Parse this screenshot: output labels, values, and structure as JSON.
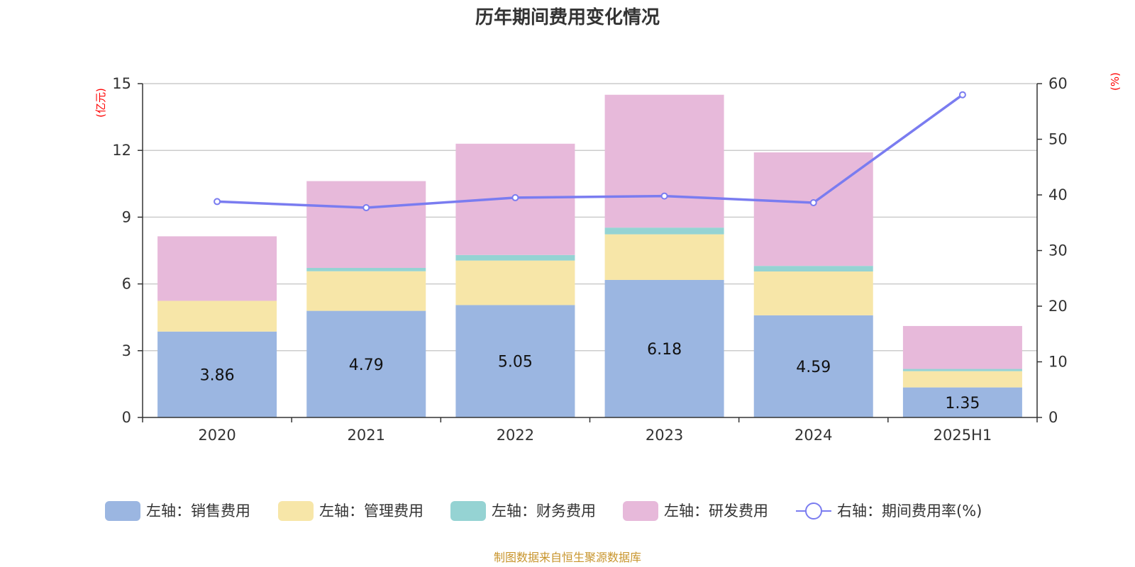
{
  "chart_data": {
    "type": "bar",
    "title": "历年期间费用变化情况",
    "categories": [
      "2020",
      "2021",
      "2022",
      "2023",
      "2024",
      "2025H1"
    ],
    "left_axis": {
      "unit": "(亿元)",
      "ylim": [
        0,
        15
      ],
      "ticks": [
        0,
        3,
        6,
        9,
        12,
        15
      ]
    },
    "right_axis": {
      "unit": "(%)",
      "ylim": [
        0,
        60
      ],
      "ticks": [
        0,
        10,
        20,
        30,
        40,
        50,
        60
      ]
    },
    "series": [
      {
        "name": "左轴：销售费用",
        "kind": "bar",
        "axis": "left",
        "color": "#9bb6e1",
        "values": [
          3.86,
          4.79,
          5.05,
          6.18,
          4.59,
          1.35
        ],
        "labels": [
          "3.86",
          "4.79",
          "5.05",
          "6.18",
          "4.59",
          "1.35"
        ]
      },
      {
        "name": "左轴：管理费用",
        "kind": "bar",
        "axis": "left",
        "color": "#f7e6a8",
        "values": [
          1.38,
          1.78,
          2.0,
          2.05,
          1.97,
          0.73
        ]
      },
      {
        "name": "左轴：财务费用",
        "kind": "bar",
        "axis": "left",
        "color": "#95d3d3",
        "values": [
          0.0,
          0.15,
          0.25,
          0.3,
          0.25,
          0.1
        ]
      },
      {
        "name": "左轴：研发费用",
        "kind": "bar",
        "axis": "left",
        "color": "#e7b9da",
        "values": [
          2.9,
          3.9,
          5.0,
          5.97,
          5.1,
          1.93
        ]
      },
      {
        "name": "右轴：期间费用率(%)",
        "kind": "line",
        "axis": "right",
        "color": "#7a7cf0",
        "values": [
          38.8,
          37.7,
          39.5,
          39.8,
          38.6,
          58.0
        ]
      }
    ],
    "grid": true,
    "legend_position": "bottom"
  },
  "source": "制图数据来自恒生聚源数据库"
}
